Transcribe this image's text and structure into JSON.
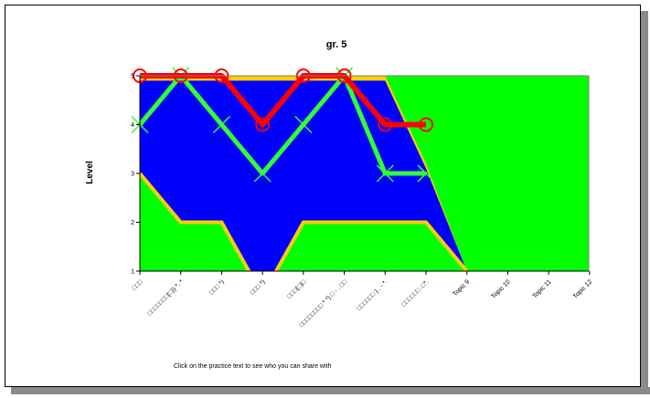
{
  "chart_data": {
    "type": "area",
    "title": "gr. 5",
    "ylabel": "Level",
    "xlabel": "",
    "ylim": [
      1,
      5
    ],
    "y_ticks": [
      "1",
      "2",
      "3",
      "4",
      "5"
    ],
    "categories": [
      "□□□",
      "□□□□□□□(□)) *. *",
      "□□□ *)",
      "□□□ *)",
      "□□□(□)□",
      "□□□□□□□□ *  *) □ - . □□",
      "□□□□□□ ) . - *.",
      "□□□□□□ .□*.",
      "Topic 9",
      "Topic 10",
      "Topic 11",
      "Topic 12"
    ],
    "series": [
      {
        "name": "",
        "kind": "area",
        "color": "#00ff00",
        "values": [
          5,
          5,
          5,
          5,
          5,
          5,
          5,
          5,
          5,
          5,
          5,
          5
        ]
      },
      {
        "name": "",
        "kind": "area",
        "color": "#ffcc00",
        "values": [
          5,
          5,
          5,
          5,
          5,
          5,
          5,
          3.2,
          1,
          null,
          null,
          null
        ]
      },
      {
        "name": "",
        "kind": "area",
        "color": "#0000ff",
        "values": [
          4.9,
          4.9,
          4.9,
          4.9,
          4.9,
          4.9,
          4.9,
          3.1,
          1,
          null,
          null,
          null
        ]
      },
      {
        "name": "",
        "kind": "area",
        "color": "#00ff00",
        "values": [
          3,
          2,
          2,
          0.5,
          2,
          2,
          2,
          2,
          1,
          null,
          null,
          null
        ]
      },
      {
        "name": "",
        "kind": "line",
        "color": "#33ff33",
        "marker": "x",
        "values": [
          4,
          5,
          4,
          3,
          4,
          5,
          3,
          3,
          null,
          null,
          null,
          null
        ]
      },
      {
        "name": "",
        "kind": "line",
        "color": "#ff0000",
        "marker": "circle",
        "values": [
          5,
          5,
          5,
          4,
          5,
          5,
          4,
          4,
          null,
          null,
          null,
          null
        ]
      }
    ],
    "grid": false
  },
  "caption": "Click on the practice text to see who you can share with"
}
